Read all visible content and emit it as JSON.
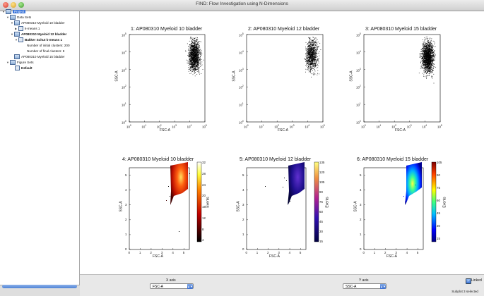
{
  "window": {
    "title": "FIND: Flow Investigation using N-Dimensions"
  },
  "sidebar": {
    "root": "Project",
    "data_sets_label": "Data Sets",
    "item_10": "AP080310 Myeloid 10 bladder",
    "kmeans": "k-means 1",
    "item_12": "AP080310 Myeloid 12 bladder",
    "bakker": "Bakker Schut k-means 1",
    "initial_clusters": "Number of initial clusters: 200",
    "final_clusters": "Number of final clusters: 8",
    "item_15": "AP080310 Myeloid 15 bladder",
    "figure_sets_label": "Figure Sets",
    "default_label": "Default"
  },
  "plots": {
    "p1_title": "1: AP080310 Myeloid 10 bladder",
    "p2_title": "2: AP080310 Myeloid 12 bladder",
    "p3_title": "3: AP080310 Myeloid 15 bladder",
    "p4_title": "4: AP080310 Myeloid 10 bladder",
    "p5_title": "5: AP080310 Myeloid 12 bladder",
    "p6_title": "6: AP080310 Myeloid 15 bladder",
    "xlabel": "FSC-A",
    "ylabel": "SSC-A",
    "colorbar_label": "Events",
    "log_ticks": [
      "10",
      "10",
      "10",
      "10",
      "10",
      "10"
    ],
    "log_exps": [
      "0",
      "1",
      "2",
      "3",
      "4",
      "5"
    ],
    "lin_x_ticks": [
      "0",
      "1",
      "2",
      "3",
      "4",
      "5"
    ],
    "lin_y_ticks": [
      "0",
      "1",
      "2",
      "3",
      "4",
      "5"
    ],
    "cb4_ticks": [
      "32",
      "28",
      "24",
      "20",
      "16",
      "12",
      "8",
      "4"
    ],
    "cb5_ticks": [
      "135",
      "120",
      "105",
      "90",
      "75",
      "60",
      "45",
      "30",
      "15"
    ],
    "cb6_ticks": [
      "105",
      "90",
      "75",
      "60",
      "45",
      "30",
      "15"
    ]
  },
  "bottom": {
    "x_axis_label": "X axis",
    "x_value": "FSC-A",
    "y_axis_label": "Y axis",
    "y_value": "SSC-A",
    "linked_label": "Linked",
    "status": "Subplot 3 selected"
  }
}
